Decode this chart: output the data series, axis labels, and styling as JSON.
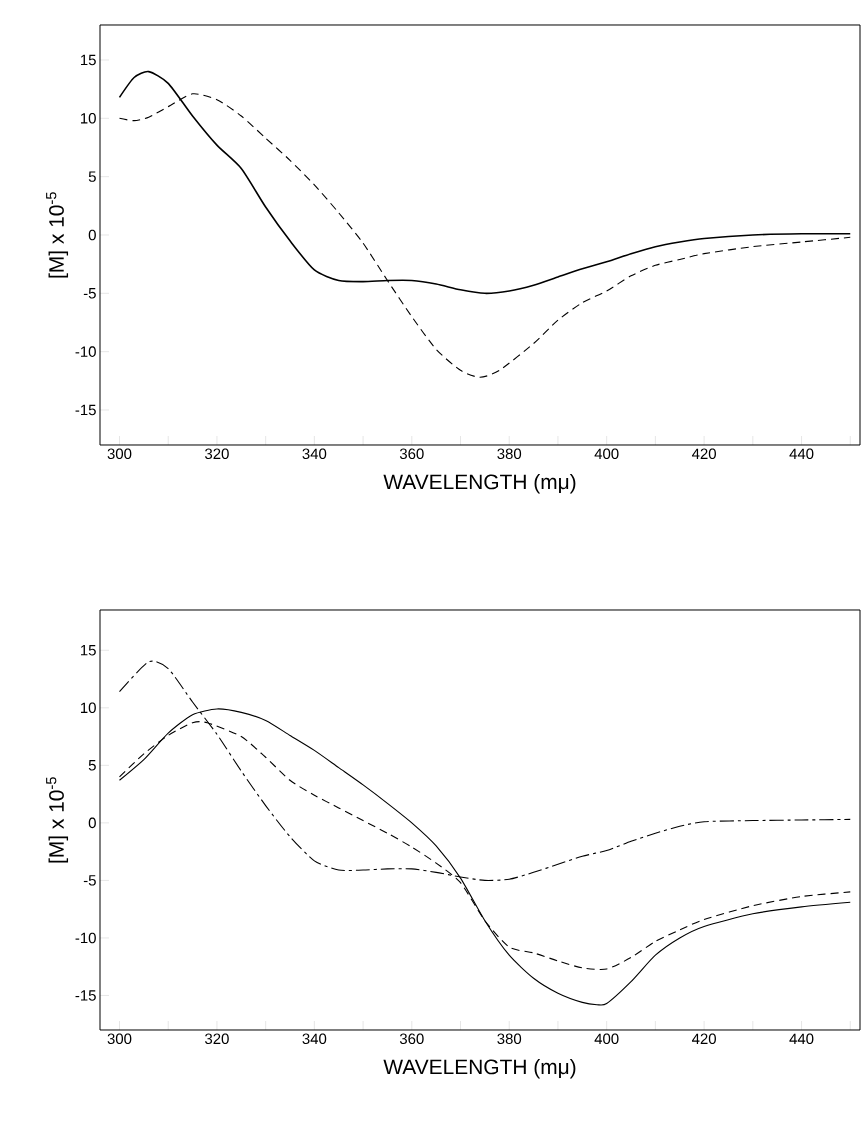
{
  "chart_data": [
    {
      "type": "line",
      "xlabel": "WAVELENGTH (mμ)",
      "ylabel": "[M] x 10$^{-5}$",
      "xlim": [
        296,
        452
      ],
      "ylim": [
        -18,
        18
      ],
      "xticks": [
        300,
        {
          "value": 310,
          "label": null
        },
        320,
        {
          "value": 330,
          "label": null
        },
        340,
        {
          "value": 350,
          "label": null
        },
        360,
        {
          "value": 370,
          "label": null
        },
        380,
        {
          "value": 390,
          "label": null
        },
        400,
        {
          "value": 410,
          "label": null
        },
        420,
        {
          "value": 430,
          "label": null
        },
        440,
        {
          "value": 450,
          "label": null
        }
      ],
      "yticks": [
        -15,
        -10,
        -5,
        0,
        5,
        10,
        15
      ],
      "series": [
        {
          "color": "#000000",
          "line_style": "solid",
          "x": [
            300,
            303,
            306,
            310,
            315,
            320,
            325,
            330,
            335,
            340,
            345,
            350,
            355,
            360,
            365,
            370,
            375,
            380,
            385,
            390,
            395,
            400,
            405,
            410,
            415,
            420,
            430,
            440,
            450
          ],
          "values": [
            11.8,
            13.5,
            14.0,
            13.0,
            10.2,
            7.7,
            5.7,
            2.4,
            -0.5,
            -3.0,
            -3.9,
            -4.0,
            -3.9,
            -3.9,
            -4.2,
            -4.7,
            -5.0,
            -4.8,
            -4.3,
            -3.6,
            -2.9,
            -2.3,
            -1.6,
            -1.0,
            -0.6,
            -0.3,
            0.0,
            0.1,
            0.1
          ]
        },
        {
          "color": "#000000",
          "line_style": "dashed",
          "x": [
            300,
            303,
            306,
            310,
            315,
            320,
            325,
            330,
            335,
            340,
            345,
            350,
            355,
            360,
            365,
            370,
            374,
            378,
            385,
            390,
            395,
            400,
            405,
            410,
            415,
            420,
            430,
            440,
            450
          ],
          "values": [
            10.0,
            9.8,
            10.1,
            11.0,
            12.1,
            11.6,
            10.2,
            8.3,
            6.4,
            4.3,
            1.9,
            -0.7,
            -3.9,
            -7.0,
            -9.8,
            -11.6,
            -12.2,
            -11.6,
            -9.3,
            -7.3,
            -5.8,
            -4.8,
            -3.5,
            -2.6,
            -2.1,
            -1.6,
            -1.0,
            -0.6,
            -0.2
          ]
        }
      ]
    },
    {
      "type": "line",
      "xlabel": "WAVELENGTH (mμ)",
      "ylabel": "[M] x 10$^{-5}$",
      "xlim": [
        296,
        452
      ],
      "ylim": [
        -18,
        18.5
      ],
      "xticks": [
        300,
        {
          "value": 310,
          "label": null
        },
        320,
        {
          "value": 330,
          "label": null
        },
        340,
        {
          "value": 350,
          "label": null
        },
        360,
        {
          "value": 370,
          "label": null
        },
        380,
        {
          "value": 390,
          "label": null
        },
        400,
        {
          "value": 410,
          "label": null
        },
        420,
        {
          "value": 430,
          "label": null
        },
        440,
        {
          "value": 450,
          "label": null
        }
      ],
      "yticks": [
        -15,
        -10,
        -5,
        0,
        5,
        10,
        15
      ],
      "series": [
        {
          "color": "#000000",
          "line_style": "solid",
          "x": [
            300,
            305,
            310,
            315,
            320,
            325,
            330,
            335,
            340,
            345,
            350,
            355,
            360,
            365,
            370,
            375,
            380,
            385,
            390,
            395,
            398,
            400,
            405,
            410,
            415,
            420,
            430,
            440,
            450
          ],
          "values": [
            3.7,
            5.5,
            7.8,
            9.4,
            9.9,
            9.6,
            8.9,
            7.6,
            6.3,
            4.8,
            3.3,
            1.7,
            0.0,
            -2.0,
            -4.8,
            -8.5,
            -11.5,
            -13.5,
            -14.8,
            -15.6,
            -15.8,
            -15.7,
            -13.8,
            -11.5,
            -10.0,
            -9.0,
            -7.9,
            -7.3,
            -6.9
          ]
        },
        {
          "color": "#000000",
          "line_style": "dashed",
          "x": [
            300,
            305,
            310,
            315,
            318,
            325,
            330,
            335,
            340,
            345,
            350,
            355,
            360,
            365,
            370,
            375,
            380,
            385,
            390,
            395,
            400,
            405,
            410,
            415,
            420,
            430,
            440,
            450
          ],
          "values": [
            4.0,
            6.0,
            7.6,
            8.7,
            8.7,
            7.5,
            5.7,
            3.7,
            2.4,
            1.3,
            0.2,
            -0.9,
            -2.1,
            -3.5,
            -5.2,
            -8.5,
            -10.8,
            -11.3,
            -12.0,
            -12.6,
            -12.7,
            -11.7,
            -10.3,
            -9.3,
            -8.4,
            -7.2,
            -6.4,
            -6.0
          ]
        },
        {
          "color": "#000000",
          "line_style": "dashdot",
          "x": [
            300,
            306,
            310,
            315,
            320,
            325,
            330,
            335,
            340,
            345,
            350,
            355,
            360,
            365,
            370,
            375,
            380,
            385,
            390,
            395,
            400,
            405,
            410,
            415,
            420,
            430,
            440,
            450
          ],
          "values": [
            11.4,
            14.0,
            13.4,
            10.5,
            7.7,
            4.5,
            1.5,
            -1.2,
            -3.3,
            -4.1,
            -4.1,
            -4.0,
            -4.0,
            -4.3,
            -4.7,
            -5.0,
            -4.9,
            -4.3,
            -3.6,
            -2.9,
            -2.4,
            -1.6,
            -0.9,
            -0.3,
            0.1,
            0.2,
            0.25,
            0.3
          ]
        }
      ]
    }
  ]
}
